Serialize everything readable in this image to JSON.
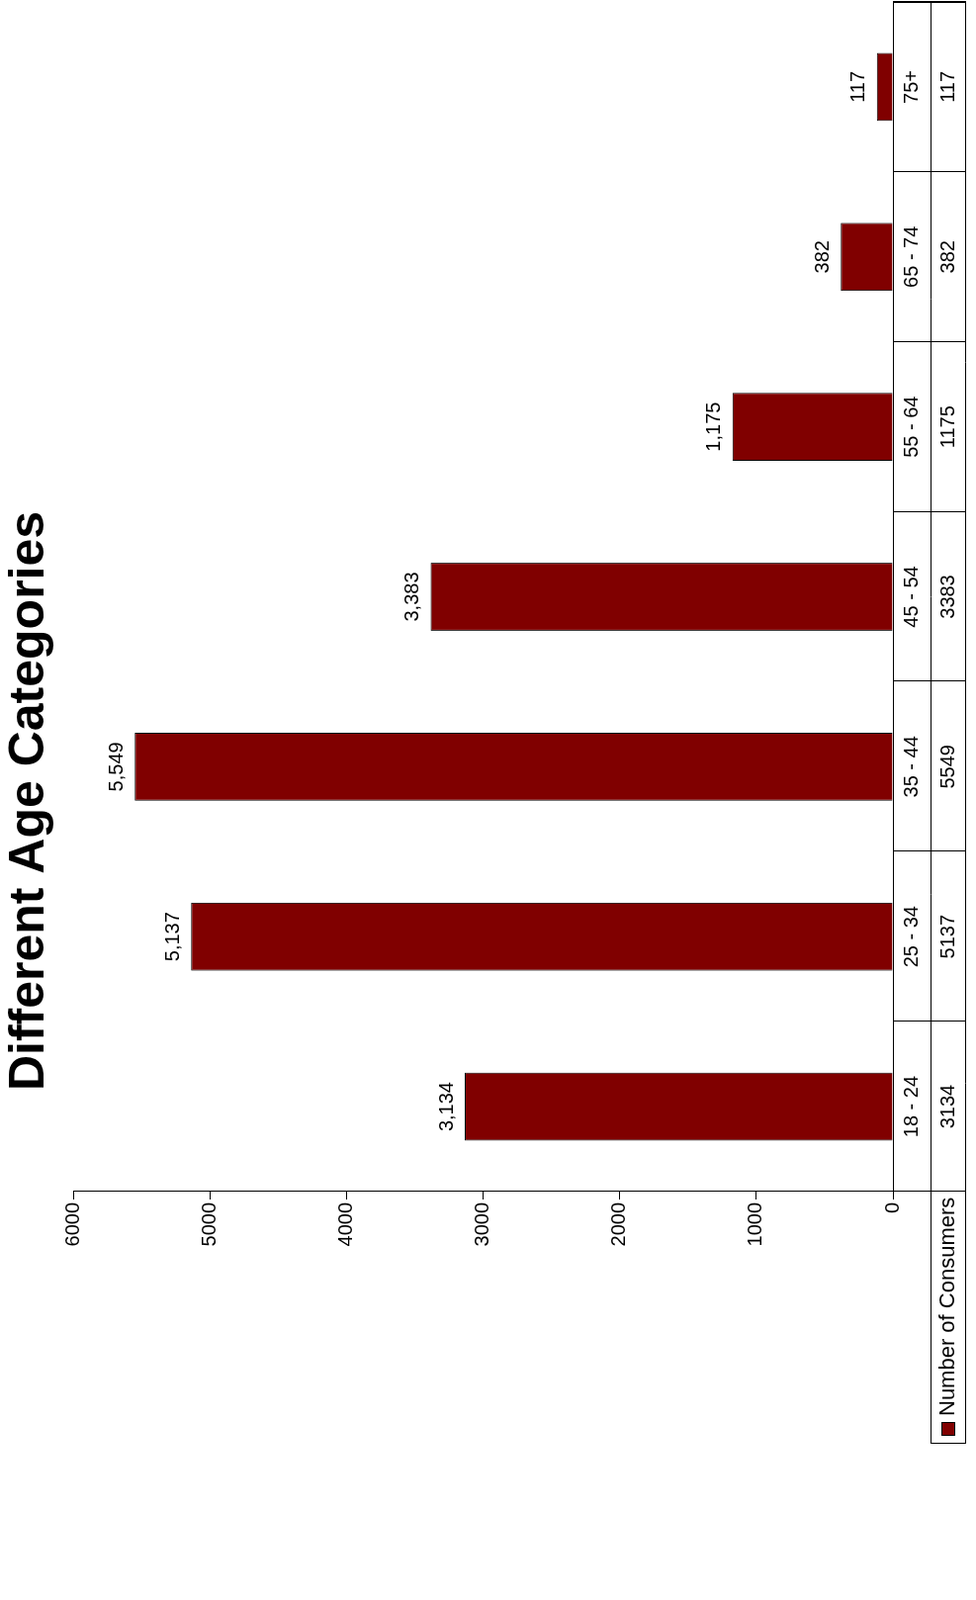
{
  "chart_data": {
    "type": "bar",
    "title": "Different Age Categories",
    "categories": [
      "18 - 24",
      "25 - 34",
      "35 - 44",
      "45 - 54",
      "55 - 64",
      "65 - 74",
      "75+"
    ],
    "series": [
      {
        "name": "Number of Consumers",
        "color": "#800000",
        "values": [
          3134,
          5137,
          5549,
          3383,
          1175,
          382,
          117
        ],
        "value_labels": [
          "3,134",
          "5,137",
          "5,549",
          "3,383",
          "1,175",
          "382",
          "117"
        ]
      }
    ],
    "ylim": [
      0,
      6000
    ],
    "yticks": [
      0,
      1000,
      2000,
      3000,
      4000,
      5000,
      6000
    ],
    "grid": false,
    "data_labels": true,
    "legend": "bottom-left"
  }
}
